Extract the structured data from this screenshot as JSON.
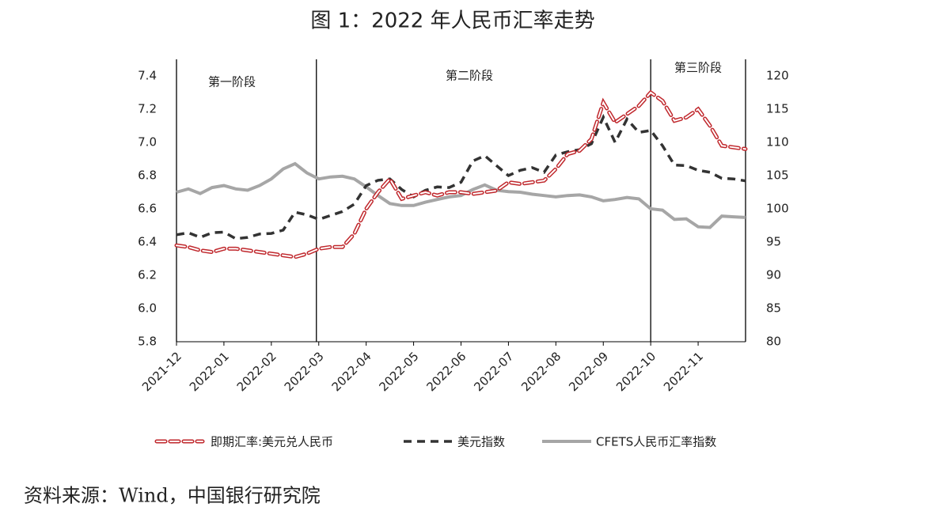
{
  "chart_data": {
    "type": "line",
    "title": "图 1：2022 年人民币汇率走势",
    "source": "资料来源：Wind，中国银行研究院",
    "annotations": [
      "第一阶段",
      "第二阶段",
      "第三阶段"
    ],
    "categories": [
      "2021-12",
      null,
      null,
      null,
      "2022-01",
      null,
      null,
      null,
      "2022-02",
      null,
      null,
      null,
      "2022-03",
      null,
      null,
      null,
      "2022-04",
      null,
      null,
      null,
      "2022-05",
      null,
      null,
      null,
      "2022-06",
      null,
      null,
      null,
      "2022-07",
      null,
      null,
      null,
      "2022-08",
      null,
      null,
      null,
      "2022-09",
      null,
      null,
      null,
      "2022-10",
      null,
      null,
      null,
      "2022-11",
      null,
      null,
      null,
      null
    ],
    "ylim": [
      5.8,
      7.4
    ],
    "yticks": [
      5.8,
      {
        "value": 6,
        "label": "6.0"
      },
      6.2,
      6.4,
      6.6,
      6.8,
      {
        "value": 7,
        "label": "7.0"
      },
      7.2,
      7.4
    ],
    "y2lim": [
      80,
      120
    ],
    "y2ticks": [
      80,
      85,
      90,
      95,
      100,
      105,
      110,
      115,
      120
    ],
    "legend": "bottom",
    "series": [
      {
        "name": "即期汇率:美元兑人民币",
        "color": "#c0282d",
        "style": "dashed-outline",
        "values": [
          6.38,
          6.37,
          6.35,
          6.34,
          6.36,
          6.36,
          6.35,
          6.34,
          6.33,
          6.32,
          6.31,
          6.33,
          6.36,
          6.37,
          6.37,
          6.45,
          6.6,
          6.7,
          6.78,
          6.66,
          6.68,
          6.7,
          6.68,
          6.7,
          6.7,
          6.69,
          6.7,
          6.71,
          6.76,
          6.75,
          6.76,
          6.77,
          6.84,
          6.93,
          6.95,
          7.02,
          7.24,
          7.12,
          7.17,
          7.22,
          7.3,
          7.25,
          7.13,
          7.15,
          7.2,
          7.1,
          6.98,
          6.97,
          6.96
        ]
      },
      {
        "name": "美元指数",
        "color": "#333333",
        "style": "dashed",
        "axis": "y2",
        "values": [
          96.1,
          96.4,
          95.7,
          96.4,
          96.5,
          95.5,
          95.7,
          96.2,
          96.3,
          96.8,
          99.5,
          99.1,
          98.4,
          99.0,
          99.6,
          100.7,
          103.5,
          104.3,
          104.5,
          102.9,
          101.8,
          102.8,
          103.3,
          103.2,
          104.0,
          107.2,
          108.0,
          106.5,
          105.0,
          105.8,
          106.2,
          105.5,
          108.1,
          108.6,
          108.9,
          109.8,
          113.8,
          110.0,
          113.5,
          111.5,
          111.8,
          109.5,
          106.6,
          106.5,
          105.8,
          105.5,
          104.6,
          104.5,
          104.2
        ]
      },
      {
        "name": "CFETS人民币汇率指数",
        "color": "#a6a6a6",
        "style": "solid",
        "axis": "y2",
        "values": [
          102.5,
          103.0,
          102.3,
          103.2,
          103.5,
          103.0,
          102.8,
          103.5,
          104.5,
          106.0,
          106.8,
          105.4,
          104.5,
          104.8,
          104.9,
          104.5,
          103.3,
          102.0,
          100.8,
          100.5,
          100.5,
          101.0,
          101.4,
          101.8,
          102.0,
          102.9,
          103.6,
          102.8,
          102.6,
          102.5,
          102.2,
          102.0,
          101.8,
          102.0,
          102.1,
          101.8,
          101.2,
          101.4,
          101.7,
          101.5,
          100.0,
          99.8,
          98.4,
          98.5,
          97.3,
          97.2,
          98.9,
          98.8,
          98.7
        ]
      }
    ]
  }
}
